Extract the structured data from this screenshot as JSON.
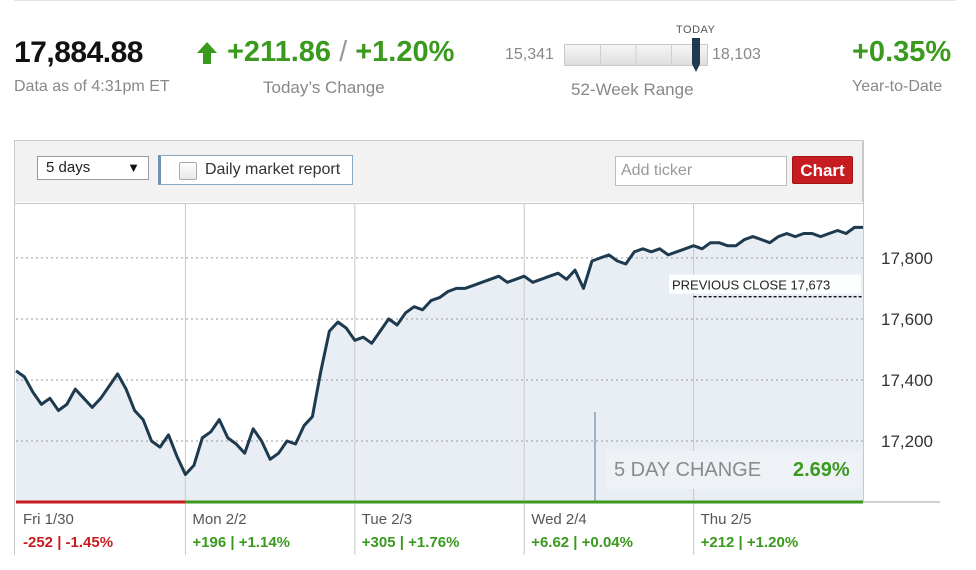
{
  "quote": {
    "price": "17,884.88",
    "as_of": "Data as of 4:31pm ET",
    "change_points": "+211.86",
    "change_sep": "/",
    "change_percent": "+1.20%",
    "change_label": "Today’s Change",
    "range_low": "15,341",
    "range_high": "18,103",
    "range_marker_label": "TODAY",
    "range_label": "52-Week Range",
    "range_position": 0.92,
    "ytd_value": "+0.35%",
    "ytd_label": "Year-to-Date"
  },
  "controls": {
    "period_selected": "5 days",
    "report_checkbox_label": "Daily market report",
    "report_checked": false,
    "ticker_placeholder": "Add ticker",
    "chart_button_label": "Chart"
  },
  "colors": {
    "up": "#3a9a1e",
    "down": "#c81d20",
    "line": "#1d3a4e",
    "area": "#e9eef5"
  },
  "chart_data": {
    "type": "area",
    "title": "",
    "xlabel": "",
    "ylabel": "",
    "ylim": [
      17000,
      17980
    ],
    "yticks": [
      17200,
      17400,
      17600,
      17800
    ],
    "ytick_labels": [
      "17,200",
      "17,400",
      "17,600",
      "17,800"
    ],
    "grid": true,
    "previous_close": 17673,
    "previous_close_label": "PREVIOUS CLOSE 17,673",
    "five_day_change_label": "5 DAY CHANGE",
    "five_day_change_value": "2.69%",
    "days": [
      {
        "label": "Fri 1/30",
        "change": "-252 | -1.45%",
        "direction": "down"
      },
      {
        "label": "Mon 2/2",
        "change": "+196 | +1.14%",
        "direction": "up"
      },
      {
        "label": "Tue 2/3",
        "change": "+305 | +1.76%",
        "direction": "up"
      },
      {
        "label": "Wed 2/4",
        "change": "+6.62 | +0.04%",
        "direction": "up"
      },
      {
        "label": "Thu 2/5",
        "change": "+212 | +1.20%",
        "direction": "up"
      }
    ],
    "series": [
      {
        "x": [
          0,
          0.05,
          0.1,
          0.15,
          0.2,
          0.25,
          0.3,
          0.35,
          0.4,
          0.45,
          0.5,
          0.55,
          0.6,
          0.65,
          0.7,
          0.75,
          0.8,
          0.85,
          0.9,
          0.95,
          1.0,
          1.05,
          1.1,
          1.15,
          1.2,
          1.25,
          1.3,
          1.35,
          1.4,
          1.45,
          1.5,
          1.55,
          1.6,
          1.65,
          1.7,
          1.75,
          1.8,
          1.85,
          1.9,
          1.95,
          2.0,
          2.05,
          2.1,
          2.15,
          2.2,
          2.25,
          2.3,
          2.35,
          2.4,
          2.45,
          2.5,
          2.55,
          2.6,
          2.65,
          2.7,
          2.75,
          2.8,
          2.85,
          2.9,
          2.95,
          3.0,
          3.05,
          3.1,
          3.15,
          3.2,
          3.25,
          3.3,
          3.35,
          3.4,
          3.45,
          3.5,
          3.55,
          3.6,
          3.65,
          3.7,
          3.75,
          3.8,
          3.85,
          3.9,
          3.95,
          4.0,
          4.05,
          4.1,
          4.15,
          4.2,
          4.25,
          4.3,
          4.35,
          4.4,
          4.45,
          4.5,
          4.55,
          4.6,
          4.65,
          4.7,
          4.75,
          4.8,
          4.85,
          4.9,
          4.95,
          5.0
        ],
        "values": [
          17430,
          17410,
          17360,
          17320,
          17340,
          17300,
          17320,
          17370,
          17340,
          17310,
          17340,
          17380,
          17420,
          17370,
          17300,
          17270,
          17200,
          17180,
          17220,
          17150,
          17090,
          17120,
          17210,
          17230,
          17270,
          17210,
          17190,
          17160,
          17240,
          17200,
          17140,
          17160,
          17200,
          17190,
          17250,
          17280,
          17430,
          17560,
          17590,
          17570,
          17530,
          17540,
          17520,
          17560,
          17600,
          17580,
          17620,
          17640,
          17630,
          17660,
          17670,
          17690,
          17700,
          17700,
          17710,
          17720,
          17730,
          17740,
          17720,
          17730,
          17740,
          17720,
          17730,
          17740,
          17750,
          17730,
          17760,
          17700,
          17790,
          17800,
          17810,
          17790,
          17780,
          17820,
          17830,
          17820,
          17830,
          17810,
          17820,
          17830,
          17840,
          17830,
          17850,
          17850,
          17840,
          17840,
          17860,
          17870,
          17860,
          17850,
          17870,
          17880,
          17870,
          17880,
          17880,
          17870,
          17880,
          17890,
          17880,
          17900,
          17900
        ]
      }
    ]
  }
}
